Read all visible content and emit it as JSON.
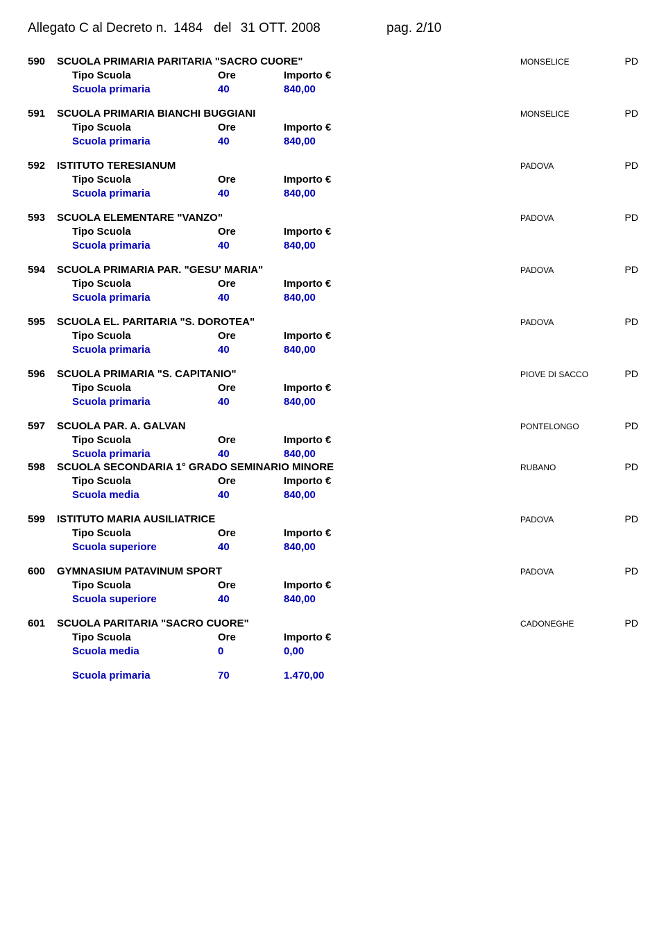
{
  "header": {
    "prefix": "Allegato  C  al Decreto n.",
    "decree_num": "1484",
    "date_prefix": "del",
    "date": "31 OTT. 2008",
    "page_label": "pag.",
    "page_num": "2/10"
  },
  "labels": {
    "tipo_scuola": "Tipo Scuola",
    "ore": "Ore",
    "importo": "Importo €"
  },
  "entries": [
    {
      "id": "590",
      "name": "SCUOLA PRIMARIA PARITARIA \"SACRO CUORE\"",
      "loc": "MONSELICE",
      "prov": "PD",
      "rows": [
        {
          "type": "Scuola primaria",
          "ore": "40",
          "importo": "840,00"
        }
      ]
    },
    {
      "id": "591",
      "name": "SCUOLA PRIMARIA BIANCHI BUGGIANI",
      "loc": "MONSELICE",
      "prov": "PD",
      "rows": [
        {
          "type": "Scuola primaria",
          "ore": "40",
          "importo": "840,00"
        }
      ]
    },
    {
      "id": "592",
      "name": "ISTITUTO TERESIANUM",
      "loc": "PADOVA",
      "prov": "PD",
      "rows": [
        {
          "type": "Scuola primaria",
          "ore": "40",
          "importo": "840,00"
        }
      ]
    },
    {
      "id": "593",
      "name": "SCUOLA ELEMENTARE \"VANZO\"",
      "loc": "PADOVA",
      "prov": "PD",
      "rows": [
        {
          "type": "Scuola primaria",
          "ore": "40",
          "importo": "840,00"
        }
      ]
    },
    {
      "id": "594",
      "name": "SCUOLA PRIMARIA PAR. \"GESU' MARIA\"",
      "loc": "PADOVA",
      "prov": "PD",
      "rows": [
        {
          "type": "Scuola primaria",
          "ore": "40",
          "importo": "840,00"
        }
      ]
    },
    {
      "id": "595",
      "name": "SCUOLA EL. PARITARIA \"S. DOROTEA\"",
      "loc": "PADOVA",
      "prov": "PD",
      "rows": [
        {
          "type": "Scuola primaria",
          "ore": "40",
          "importo": "840,00"
        }
      ]
    },
    {
      "id": "596",
      "name": "SCUOLA PRIMARIA \"S. CAPITANIO\"",
      "loc": "PIOVE DI SACCO",
      "prov": "PD",
      "rows": [
        {
          "type": "Scuola primaria",
          "ore": "40",
          "importo": "840,00"
        }
      ]
    },
    {
      "id": "597",
      "name": "SCUOLA PAR.  A. GALVAN",
      "loc": "PONTELONGO",
      "prov": "PD",
      "tight": true,
      "rows": [
        {
          "type": "Scuola primaria",
          "ore": "40",
          "importo": "840,00"
        }
      ]
    },
    {
      "id": "598",
      "name": "SCUOLA SECONDARIA 1° GRADO SEMINARIO MINORE",
      "loc": "RUBANO",
      "prov": "PD",
      "rows": [
        {
          "type": "Scuola media",
          "ore": "40",
          "importo": "840,00"
        }
      ]
    },
    {
      "id": "599",
      "name": "ISTITUTO MARIA AUSILIATRICE",
      "loc": "PADOVA",
      "prov": "PD",
      "rows": [
        {
          "type": "Scuola superiore",
          "ore": "40",
          "importo": "840,00"
        }
      ]
    },
    {
      "id": "600",
      "name": "GYMNASIUM PATAVINUM SPORT",
      "loc": "PADOVA",
      "prov": "PD",
      "rows": [
        {
          "type": "Scuola superiore",
          "ore": "40",
          "importo": "840,00"
        }
      ]
    },
    {
      "id": "601",
      "name": "SCUOLA  PARITARIA \"SACRO CUORE\"",
      "loc": "CADONEGHE",
      "prov": "PD",
      "rows": [
        {
          "type": "Scuola media",
          "ore": "0",
          "importo": "0,00"
        },
        {
          "type": "Scuola primaria",
          "ore": "70",
          "importo": "1.470,00",
          "spaced": true
        }
      ]
    }
  ]
}
